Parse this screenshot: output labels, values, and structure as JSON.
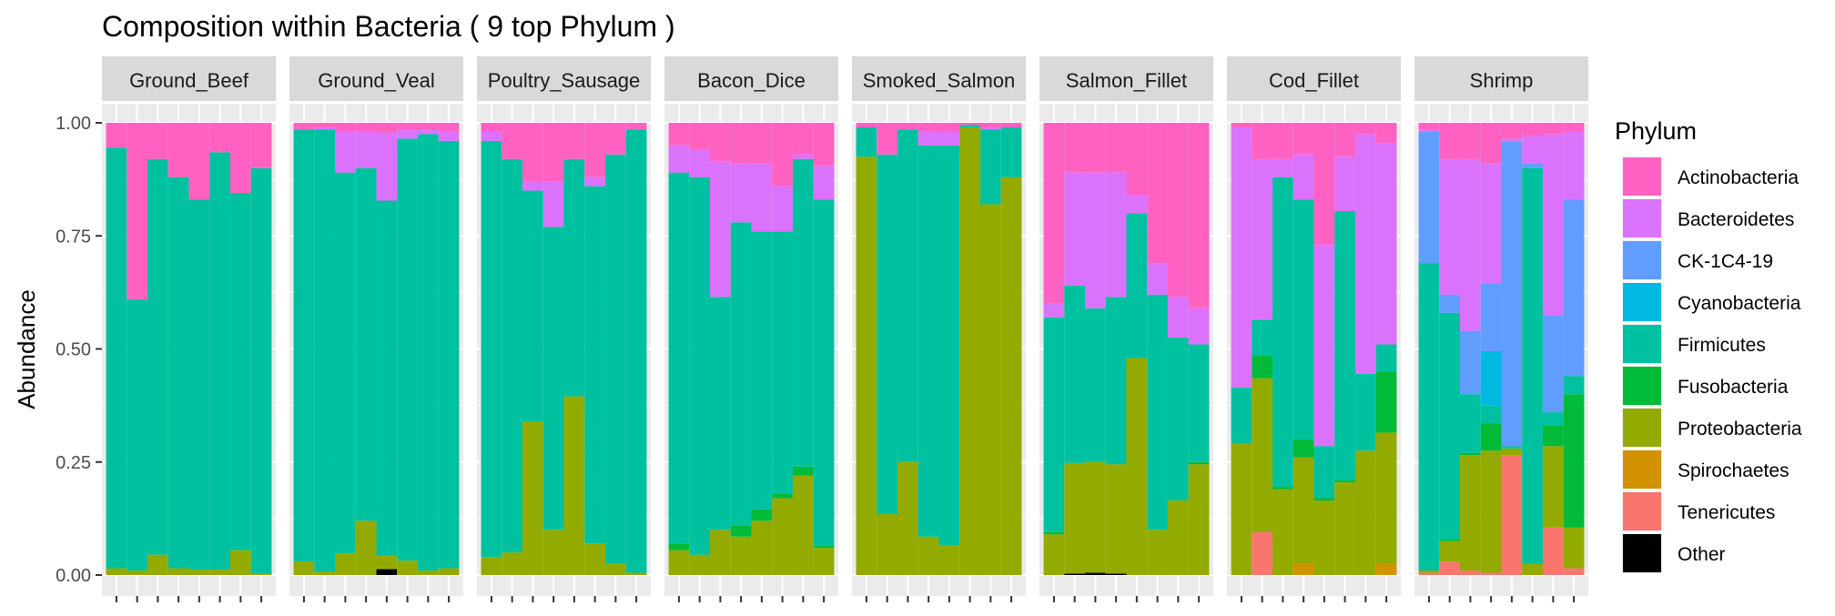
{
  "chart_data": {
    "type": "bar",
    "stacked": true,
    "faceted": true,
    "title": "Composition within Bacteria ( 9 top Phylum )",
    "xlabel": "",
    "ylabel": "Abundance",
    "ylim": [
      0,
      1
    ],
    "y_ticks": [
      "0.00",
      "0.25",
      "0.50",
      "0.75",
      "1.00"
    ],
    "grid": true,
    "legend": {
      "title": "Phylum",
      "position": "right",
      "items": [
        {
          "name": "Actinobacteria",
          "color": "#FF61C3"
        },
        {
          "name": "Bacteroidetes",
          "color": "#DB72FB"
        },
        {
          "name": "CK-1C4-19",
          "color": "#619CFF"
        },
        {
          "name": "Cyanobacteria",
          "color": "#00B9E3"
        },
        {
          "name": "Firmicutes",
          "color": "#00C19F"
        },
        {
          "name": "Fusobacteria",
          "color": "#00BA38"
        },
        {
          "name": "Proteobacteria",
          "color": "#93AA00"
        },
        {
          "name": "Spirochaetes",
          "color": "#D39200"
        },
        {
          "name": "Tenericutes",
          "color": "#F8766D"
        },
        {
          "name": "Other",
          "color": "#000000"
        }
      ]
    },
    "stack_order": [
      "Other",
      "Tenericutes",
      "Spirochaetes",
      "Proteobacteria",
      "Fusobacteria",
      "Firmicutes",
      "Cyanobacteria",
      "CK-1C4-19",
      "Bacteroidetes",
      "Actinobacteria"
    ],
    "facets": [
      {
        "label": "Ground_Beef",
        "samples": [
          {
            "Proteobacteria": 0.015,
            "Firmicutes": 0.93,
            "Actinobacteria": 0.055
          },
          {
            "Proteobacteria": 0.01,
            "Firmicutes": 0.6,
            "Actinobacteria": 0.39
          },
          {
            "Proteobacteria": 0.045,
            "Firmicutes": 0.875,
            "Actinobacteria": 0.08
          },
          {
            "Proteobacteria": 0.015,
            "Firmicutes": 0.865,
            "Actinobacteria": 0.12
          },
          {
            "Proteobacteria": 0.012,
            "Firmicutes": 0.818,
            "Actinobacteria": 0.17
          },
          {
            "Proteobacteria": 0.012,
            "Firmicutes": 0.923,
            "Actinobacteria": 0.065
          },
          {
            "Proteobacteria": 0.055,
            "Firmicutes": 0.79,
            "Actinobacteria": 0.155
          },
          {
            "Proteobacteria": 0.004,
            "Firmicutes": 0.896,
            "Actinobacteria": 0.1
          }
        ]
      },
      {
        "label": "Ground_Veal",
        "samples": [
          {
            "Proteobacteria": 0.03,
            "Firmicutes": 0.955,
            "Actinobacteria": 0.015
          },
          {
            "Proteobacteria": 0.008,
            "Firmicutes": 0.977,
            "Bacteroidetes": 0.005,
            "Actinobacteria": 0.01
          },
          {
            "Proteobacteria": 0.048,
            "Firmicutes": 0.842,
            "Bacteroidetes": 0.09,
            "Actinobacteria": 0.02
          },
          {
            "Proteobacteria": 0.12,
            "Firmicutes": 0.78,
            "Bacteroidetes": 0.08,
            "Actinobacteria": 0.02
          },
          {
            "Other": 0.013,
            "Proteobacteria": 0.03,
            "Firmicutes": 0.785,
            "Bacteroidetes": 0.15,
            "Actinobacteria": 0.022
          },
          {
            "Proteobacteria": 0.032,
            "Firmicutes": 0.933,
            "Bacteroidetes": 0.02,
            "Actinobacteria": 0.015
          },
          {
            "Proteobacteria": 0.01,
            "Firmicutes": 0.965,
            "Bacteroidetes": 0.01,
            "Actinobacteria": 0.015
          },
          {
            "Proteobacteria": 0.015,
            "Firmicutes": 0.945,
            "Bacteroidetes": 0.02,
            "Actinobacteria": 0.02
          }
        ]
      },
      {
        "label": "Poultry_Sausage",
        "samples": [
          {
            "Proteobacteria": 0.04,
            "Firmicutes": 0.92,
            "Bacteroidetes": 0.02,
            "Actinobacteria": 0.02
          },
          {
            "Proteobacteria": 0.05,
            "Firmicutes": 0.87,
            "Actinobacteria": 0.08
          },
          {
            "Proteobacteria": 0.34,
            "Firmicutes": 0.51,
            "Bacteroidetes": 0.02,
            "Actinobacteria": 0.13
          },
          {
            "Proteobacteria": 0.1,
            "Firmicutes": 0.67,
            "Bacteroidetes": 0.1,
            "Actinobacteria": 0.13
          },
          {
            "Proteobacteria": 0.395,
            "Firmicutes": 0.525,
            "Actinobacteria": 0.08
          },
          {
            "Proteobacteria": 0.07,
            "Firmicutes": 0.79,
            "Bacteroidetes": 0.02,
            "Actinobacteria": 0.12
          },
          {
            "Proteobacteria": 0.025,
            "Firmicutes": 0.905,
            "Actinobacteria": 0.07
          },
          {
            "Proteobacteria": 0.005,
            "Firmicutes": 0.98,
            "Actinobacteria": 0.015
          }
        ]
      },
      {
        "label": "Bacon_Dice",
        "samples": [
          {
            "Proteobacteria": 0.055,
            "Fusobacteria": 0.015,
            "Firmicutes": 0.82,
            "Bacteroidetes": 0.06,
            "Actinobacteria": 0.05
          },
          {
            "Proteobacteria": 0.045,
            "Firmicutes": 0.835,
            "Bacteroidetes": 0.06,
            "Actinobacteria": 0.06
          },
          {
            "Proteobacteria": 0.1,
            "Firmicutes": 0.515,
            "Bacteroidetes": 0.3,
            "Actinobacteria": 0.085
          },
          {
            "Proteobacteria": 0.085,
            "Fusobacteria": 0.025,
            "Firmicutes": 0.67,
            "Bacteroidetes": 0.13,
            "Actinobacteria": 0.09
          },
          {
            "Proteobacteria": 0.12,
            "Fusobacteria": 0.025,
            "Firmicutes": 0.615,
            "Bacteroidetes": 0.15,
            "Actinobacteria": 0.09
          },
          {
            "Proteobacteria": 0.17,
            "Fusobacteria": 0.01,
            "Firmicutes": 0.58,
            "Bacteroidetes": 0.1,
            "Actinobacteria": 0.14
          },
          {
            "Proteobacteria": 0.22,
            "Fusobacteria": 0.02,
            "Firmicutes": 0.68,
            "Bacteroidetes": 0.01,
            "Actinobacteria": 0.07
          },
          {
            "Proteobacteria": 0.06,
            "Fusobacteria": 0.005,
            "Firmicutes": 0.765,
            "Bacteroidetes": 0.075,
            "Actinobacteria": 0.095
          }
        ]
      },
      {
        "label": "Smoked_Salmon",
        "samples": [
          {
            "Proteobacteria": 0.925,
            "Firmicutes": 0.065,
            "Actinobacteria": 0.01
          },
          {
            "Proteobacteria": 0.135,
            "Firmicutes": 0.795,
            "Actinobacteria": 0.07
          },
          {
            "Proteobacteria": 0.25,
            "Firmicutes": 0.735,
            "Actinobacteria": 0.015
          },
          {
            "Proteobacteria": 0.085,
            "Firmicutes": 0.865,
            "Bacteroidetes": 0.03,
            "Actinobacteria": 0.02
          },
          {
            "Proteobacteria": 0.065,
            "Firmicutes": 0.885,
            "Bacteroidetes": 0.03,
            "Actinobacteria": 0.02
          },
          {
            "Proteobacteria": 0.99,
            "Firmicutes": 0.005,
            "Actinobacteria": 0.005
          },
          {
            "Proteobacteria": 0.82,
            "Firmicutes": 0.165,
            "Bacteroidetes": 0.005,
            "Actinobacteria": 0.01
          },
          {
            "Proteobacteria": 0.88,
            "Firmicutes": 0.11,
            "Actinobacteria": 0.01
          }
        ]
      },
      {
        "label": "Salmon_Fillet",
        "samples": [
          {
            "Proteobacteria": 0.09,
            "Fusobacteria": 0.005,
            "Firmicutes": 0.475,
            "Bacteroidetes": 0.03,
            "Actinobacteria": 0.4
          },
          {
            "Other": 0.003,
            "Proteobacteria": 0.245,
            "Firmicutes": 0.392,
            "Bacteroidetes": 0.25,
            "Actinobacteria": 0.11
          },
          {
            "Other": 0.005,
            "Proteobacteria": 0.245,
            "Firmicutes": 0.34,
            "Bacteroidetes": 0.3,
            "Actinobacteria": 0.11
          },
          {
            "Other": 0.003,
            "Proteobacteria": 0.242,
            "Firmicutes": 0.37,
            "Bacteroidetes": 0.275,
            "Actinobacteria": 0.11
          },
          {
            "Proteobacteria": 0.48,
            "Firmicutes": 0.32,
            "Bacteroidetes": 0.04,
            "Actinobacteria": 0.16
          },
          {
            "Proteobacteria": 0.1,
            "Firmicutes": 0.52,
            "Bacteroidetes": 0.07,
            "Actinobacteria": 0.31
          },
          {
            "Proteobacteria": 0.165,
            "Firmicutes": 0.36,
            "Bacteroidetes": 0.09,
            "Actinobacteria": 0.385
          },
          {
            "Proteobacteria": 0.245,
            "Fusobacteria": 0.005,
            "Firmicutes": 0.26,
            "Bacteroidetes": 0.08,
            "Actinobacteria": 0.41
          }
        ]
      },
      {
        "label": "Cod_Fillet",
        "samples": [
          {
            "Proteobacteria": 0.29,
            "Firmicutes": 0.125,
            "Bacteroidetes": 0.575,
            "Actinobacteria": 0.01
          },
          {
            "Tenericutes": 0.095,
            "Proteobacteria": 0.34,
            "Fusobacteria": 0.05,
            "Firmicutes": 0.08,
            "Bacteroidetes": 0.355,
            "Actinobacteria": 0.08
          },
          {
            "Proteobacteria": 0.19,
            "Fusobacteria": 0.005,
            "Firmicutes": 0.685,
            "Bacteroidetes": 0.04,
            "Actinobacteria": 0.08
          },
          {
            "Spirochaetes": 0.025,
            "Proteobacteria": 0.235,
            "Fusobacteria": 0.04,
            "Firmicutes": 0.53,
            "Bacteroidetes": 0.1,
            "Actinobacteria": 0.07
          },
          {
            "Proteobacteria": 0.165,
            "Fusobacteria": 0.005,
            "Firmicutes": 0.115,
            "Bacteroidetes": 0.445,
            "Actinobacteria": 0.27
          },
          {
            "Proteobacteria": 0.205,
            "Fusobacteria": 0.005,
            "Firmicutes": 0.595,
            "Bacteroidetes": 0.12,
            "Actinobacteria": 0.075
          },
          {
            "Proteobacteria": 0.275,
            "Firmicutes": 0.17,
            "Bacteroidetes": 0.53,
            "Actinobacteria": 0.025
          },
          {
            "Spirochaetes": 0.025,
            "Proteobacteria": 0.29,
            "Fusobacteria": 0.135,
            "Firmicutes": 0.06,
            "Bacteroidetes": 0.445,
            "Actinobacteria": 0.045
          }
        ]
      },
      {
        "label": "Shrimp",
        "samples": [
          {
            "Tenericutes": 0.005,
            "Proteobacteria": 0.005,
            "Firmicutes": 0.68,
            "CK-1C4-19": 0.29,
            "Bacteroidetes": 0.005,
            "Actinobacteria": 0.015
          },
          {
            "Tenericutes": 0.03,
            "Proteobacteria": 0.045,
            "Fusobacteria": 0.005,
            "Firmicutes": 0.5,
            "CK-1C4-19": 0.04,
            "Bacteroidetes": 0.3,
            "Actinobacteria": 0.08
          },
          {
            "Tenericutes": 0.01,
            "Proteobacteria": 0.255,
            "Fusobacteria": 0.005,
            "Firmicutes": 0.13,
            "CK-1C4-19": 0.14,
            "Bacteroidetes": 0.38,
            "Actinobacteria": 0.08
          },
          {
            "Tenericutes": 0.005,
            "Proteobacteria": 0.27,
            "Fusobacteria": 0.06,
            "Firmicutes": 0.04,
            "Cyanobacteria": 0.12,
            "CK-1C4-19": 0.15,
            "Bacteroidetes": 0.265,
            "Actinobacteria": 0.09
          },
          {
            "Tenericutes": 0.265,
            "Proteobacteria": 0.015,
            "Firmicutes": 0.005,
            "CK-1C4-19": 0.675,
            "Bacteroidetes": 0.005,
            "Actinobacteria": 0.035
          },
          {
            "Proteobacteria": 0.025,
            "Firmicutes": 0.875,
            "CK-1C4-19": 0.01,
            "Bacteroidetes": 0.06,
            "Actinobacteria": 0.03
          },
          {
            "Tenericutes": 0.105,
            "Proteobacteria": 0.18,
            "Fusobacteria": 0.045,
            "Firmicutes": 0.03,
            "CK-1C4-19": 0.215,
            "Bacteroidetes": 0.4,
            "Actinobacteria": 0.025
          },
          {
            "Tenericutes": 0.015,
            "Proteobacteria": 0.09,
            "Fusobacteria": 0.295,
            "Firmicutes": 0.04,
            "CK-1C4-19": 0.39,
            "Bacteroidetes": 0.15,
            "Actinobacteria": 0.02
          }
        ]
      }
    ]
  }
}
